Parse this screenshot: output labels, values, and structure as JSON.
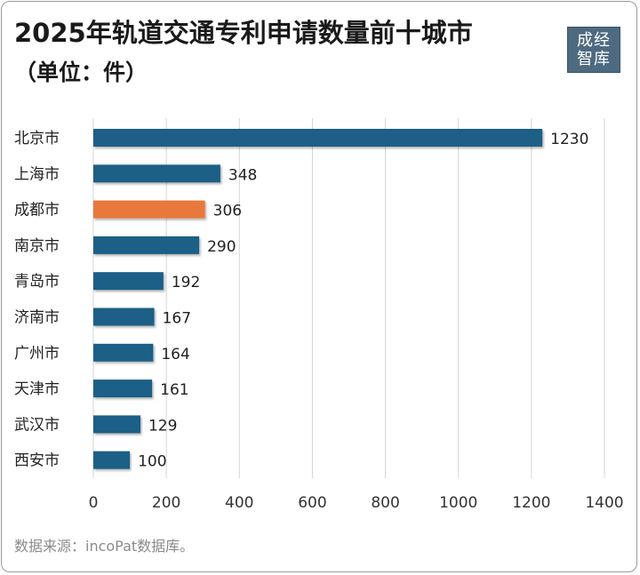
{
  "title": "2025年轨道交通专利申请数量前十城市",
  "subtitle": "（单位：件）",
  "logo": {
    "line1": "成经",
    "line2": "智库"
  },
  "source": "数据来源：incoPat数据库。",
  "chart_data": {
    "type": "bar",
    "orientation": "horizontal",
    "categories": [
      "北京市",
      "上海市",
      "成都市",
      "南京市",
      "青岛市",
      "济南市",
      "广州市",
      "天津市",
      "武汉市",
      "西安市"
    ],
    "values": [
      1230,
      348,
      306,
      290,
      192,
      167,
      164,
      161,
      129,
      100
    ],
    "highlight": "成都市",
    "xlim": [
      0,
      1400
    ],
    "xticks": [
      0,
      200,
      400,
      600,
      800,
      1000,
      1200,
      1400
    ],
    "grid": true,
    "colors": {
      "bar": "#1f5f87",
      "highlight": "#e8783a",
      "grid": "#d4d4d4"
    }
  }
}
